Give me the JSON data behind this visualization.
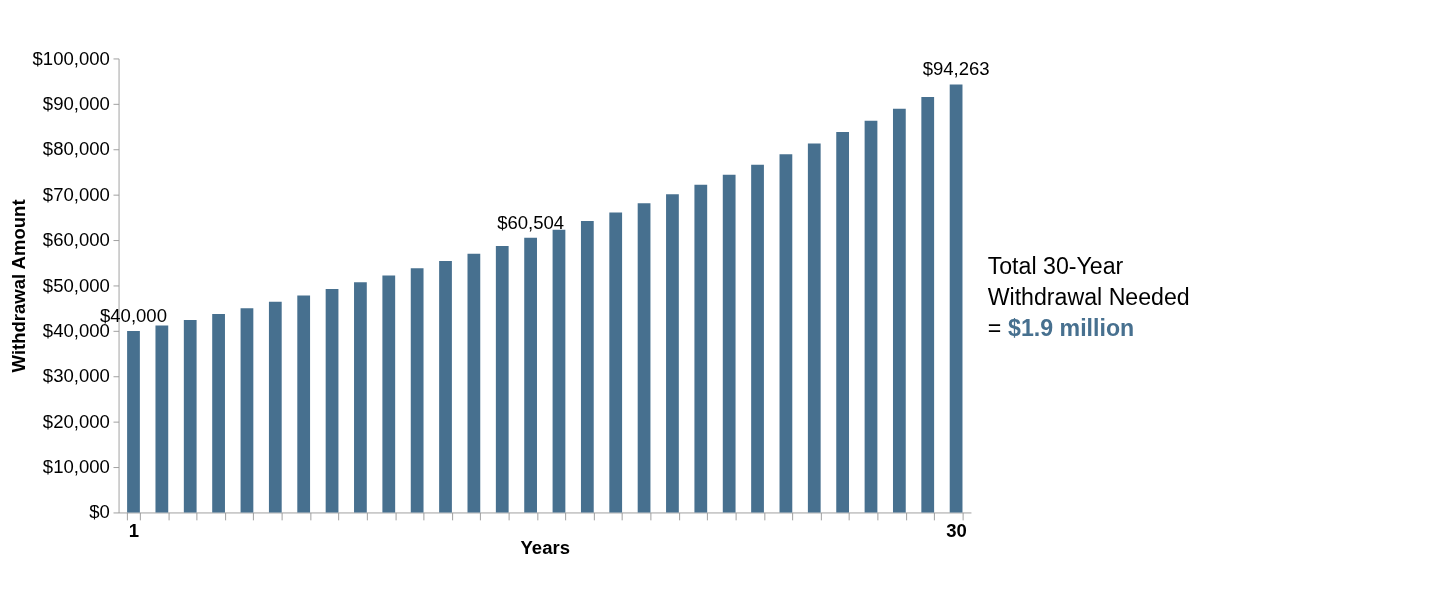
{
  "chart_data": {
    "type": "bar",
    "xlabel": "Years",
    "ylabel": "Withdrawal Amount",
    "categories": [
      "1",
      null,
      null,
      null,
      null,
      null,
      null,
      null,
      null,
      null,
      null,
      null,
      null,
      null,
      null,
      null,
      null,
      null,
      null,
      null,
      null,
      null,
      null,
      null,
      null,
      null,
      null,
      null,
      null,
      "30"
    ],
    "values": [
      40000,
      41200,
      42400,
      43700,
      45000,
      46400,
      47800,
      49200,
      50700,
      52200,
      53800,
      55400,
      57000,
      58700,
      60504,
      62300,
      64200,
      66100,
      68100,
      70100,
      72200,
      74400,
      76600,
      78900,
      81300,
      83800,
      86300,
      88900,
      91500,
      94263
    ],
    "value_labels": [
      "$40,000",
      null,
      null,
      null,
      null,
      null,
      null,
      null,
      null,
      null,
      null,
      null,
      null,
      null,
      "$60,504",
      null,
      null,
      null,
      null,
      null,
      null,
      null,
      null,
      null,
      null,
      null,
      null,
      null,
      null,
      "$94,263"
    ],
    "color": "#47708f",
    "ylim": [
      0,
      100000
    ],
    "yticks": [
      {
        "value": 0,
        "label": "$0"
      },
      {
        "value": 10000,
        "label": "$10,000"
      },
      {
        "value": 20000,
        "label": "$20,000"
      },
      {
        "value": 30000,
        "label": "$30,000"
      },
      {
        "value": 40000,
        "label": "$40,000"
      },
      {
        "value": 50000,
        "label": "$50,000"
      },
      {
        "value": 60000,
        "label": "$60,000"
      },
      {
        "value": 70000,
        "label": "$70,000"
      },
      {
        "value": 80000,
        "label": "$80,000"
      },
      {
        "value": 90000,
        "label": "$90,000"
      },
      {
        "value": 100000,
        "label": "$100,000"
      }
    ],
    "grid": false,
    "annotations": [
      "Total 30-Year",
      "Withdrawal Needed",
      "=",
      "$1.9 million"
    ]
  }
}
